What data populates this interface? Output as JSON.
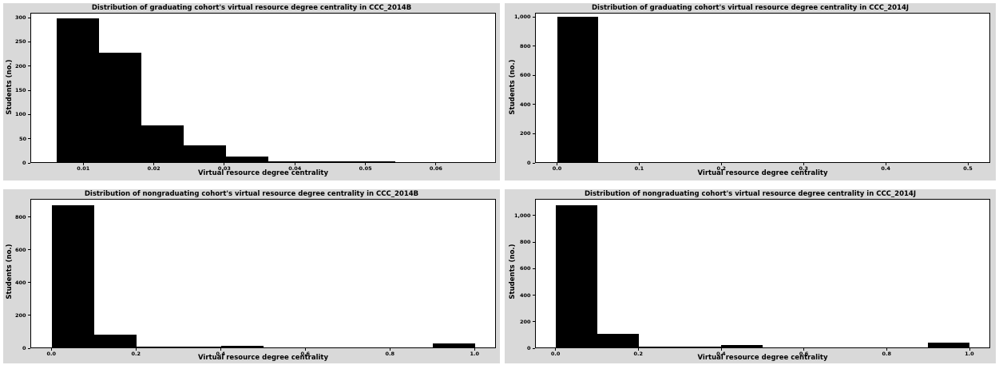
{
  "chart_data": [
    {
      "type": "bar",
      "title": "Distribution of graduating cohort's virtual resource degree centrality in CCC_2014B",
      "xlabel": "Virtual resource degree centrality",
      "ylabel": "Students (no.)",
      "xlim": [
        0.0025,
        0.0685
      ],
      "ylim": [
        0,
        310
      ],
      "xticks": [
        0.01,
        0.02,
        0.03,
        0.04,
        0.05,
        0.06
      ],
      "xtick_labels": [
        "0.01",
        "0.02",
        "0.03",
        "0.04",
        "0.05",
        "0.06"
      ],
      "yticks": [
        0,
        50,
        100,
        150,
        200,
        250,
        300
      ],
      "ytick_labels": [
        "0",
        "50",
        "100",
        "150",
        "200",
        "250",
        "300"
      ],
      "bin_edges": [
        0.0062,
        0.0122,
        0.0182,
        0.0242,
        0.0302,
        0.0362,
        0.0422,
        0.0482,
        0.0542,
        0.0602,
        0.0662
      ],
      "values": [
        298,
        228,
        77,
        37,
        13,
        3,
        4,
        3,
        1,
        1
      ]
    },
    {
      "type": "bar",
      "title": "Distribution of graduating cohort's virtual resource degree centrality in CCC_2014J",
      "xlabel": "Virtual resource degree centrality",
      "ylabel": "Students (no.)",
      "xlim": [
        -0.027,
        0.527
      ],
      "ylim": [
        0,
        1030
      ],
      "xticks": [
        0.0,
        0.1,
        0.2,
        0.3,
        0.4,
        0.5
      ],
      "xtick_labels": [
        "0.0",
        "0.1",
        "0.2",
        "0.3",
        "0.4",
        "0.5"
      ],
      "yticks": [
        0,
        200,
        400,
        600,
        800,
        1000
      ],
      "ytick_labels": [
        "0",
        "200",
        "400",
        "600",
        "800",
        "1,000"
      ],
      "bin_edges": [
        0.0,
        0.05,
        0.1,
        0.15,
        0.2,
        0.25,
        0.3,
        0.35,
        0.4,
        0.45,
        0.5
      ],
      "values": [
        1003,
        3,
        2,
        0,
        0,
        0,
        0,
        0,
        0,
        1
      ]
    },
    {
      "type": "bar",
      "title": "Distribution of nongraduating cohort's virtual resource degree centrality in CCC_2014B",
      "xlabel": "Virtual resource degree centrality",
      "ylabel": "Students (no.)",
      "xlim": [
        -0.05,
        1.05
      ],
      "ylim": [
        0,
        910
      ],
      "xticks": [
        0.0,
        0.2,
        0.4,
        0.6,
        0.8,
        1.0
      ],
      "xtick_labels": [
        "0.0",
        "0.2",
        "0.4",
        "0.6",
        "0.8",
        "1.0"
      ],
      "yticks": [
        0,
        200,
        400,
        600,
        800
      ],
      "ytick_labels": [
        "0",
        "200",
        "400",
        "600",
        "800"
      ],
      "bin_edges": [
        0.0,
        0.1,
        0.2,
        0.3,
        0.4,
        0.5,
        0.6,
        0.7,
        0.8,
        0.9,
        1.0
      ],
      "values": [
        870,
        82,
        8,
        10,
        15,
        0,
        0,
        0,
        0,
        28
      ]
    },
    {
      "type": "bar",
      "title": "Distribution of nongraduating cohort's virtual resource degree centrality in CCC_2014J",
      "xlabel": "Virtual resource degree centrality",
      "ylabel": "Students (no.)",
      "xlim": [
        -0.05,
        1.05
      ],
      "ylim": [
        0,
        1125
      ],
      "xticks": [
        0.0,
        0.2,
        0.4,
        0.6,
        0.8,
        1.0
      ],
      "xtick_labels": [
        "0.0",
        "0.2",
        "0.4",
        "0.6",
        "0.8",
        "1.0"
      ],
      "yticks": [
        0,
        200,
        400,
        600,
        800,
        1000
      ],
      "ytick_labels": [
        "0",
        "200",
        "400",
        "600",
        "800",
        "1,000"
      ],
      "bin_edges": [
        0.0,
        0.1,
        0.2,
        0.3,
        0.4,
        0.5,
        0.6,
        0.7,
        0.8,
        0.9,
        1.0
      ],
      "values": [
        1075,
        110,
        12,
        15,
        25,
        0,
        0,
        0,
        0,
        45
      ]
    }
  ]
}
